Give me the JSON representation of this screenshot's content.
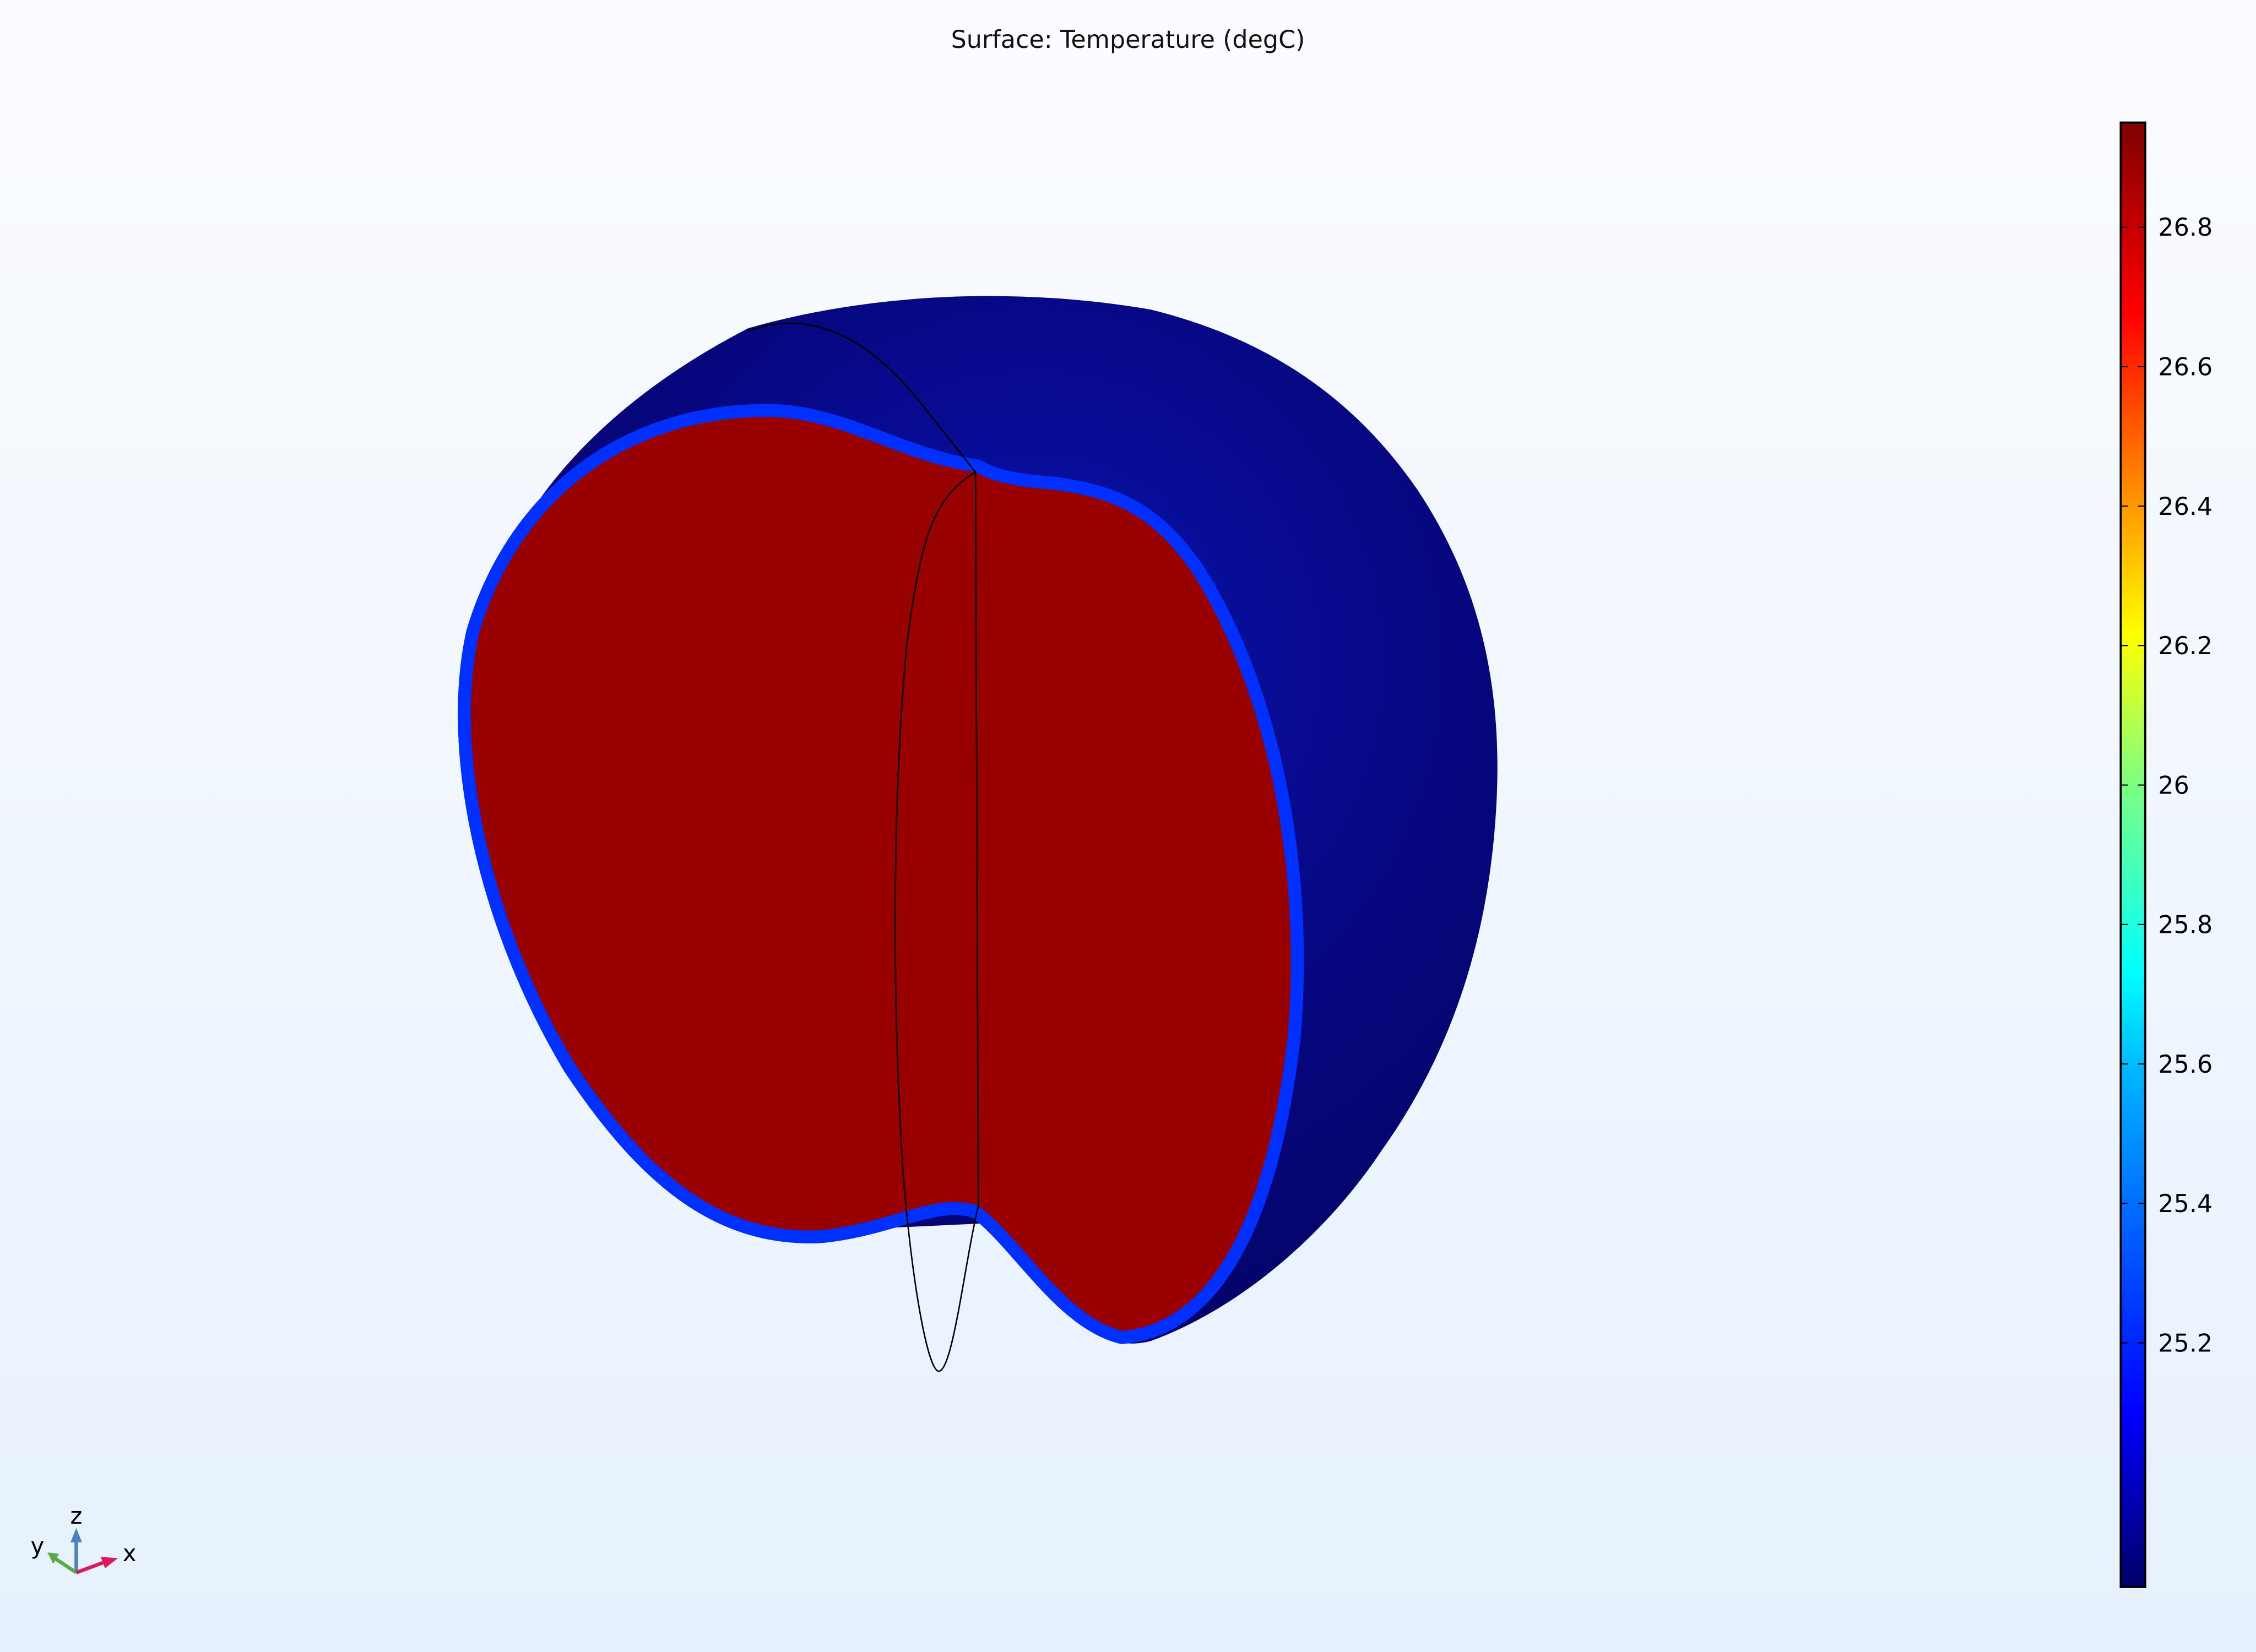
{
  "plot": {
    "title": "Surface: Temperature (degC)",
    "colormap": "jet",
    "colorbar": {
      "ticks": [
        "26.8",
        "26.6",
        "26.4",
        "26.2",
        "26",
        "25.8",
        "25.6",
        "25.4",
        "25.2"
      ],
      "tick_values": [
        26.8,
        26.6,
        26.4,
        26.2,
        26.0,
        25.8,
        25.6,
        25.4,
        25.2
      ],
      "range": [
        24.85,
        26.95
      ]
    },
    "colors": {
      "body": "#0a0a7a",
      "core": "#990000"
    }
  },
  "axes_triad": {
    "x_label": "x",
    "y_label": "y",
    "z_label": "z",
    "x_color": "#d81b5a",
    "y_color": "#58aa46",
    "z_color": "#4a82be"
  }
}
